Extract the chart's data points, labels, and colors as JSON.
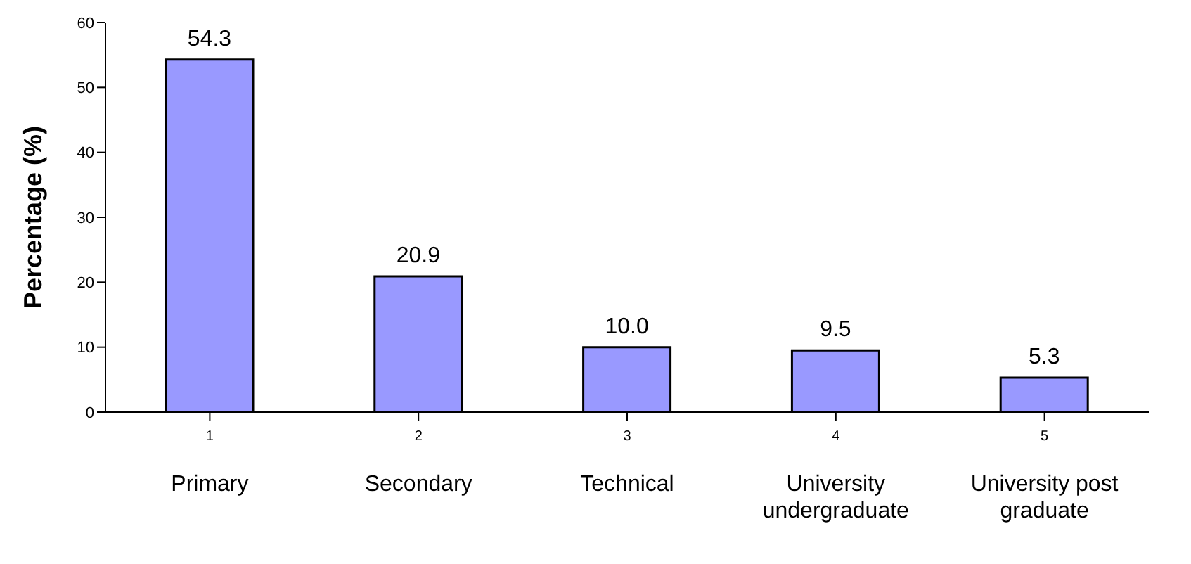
{
  "chart_data": {
    "type": "bar",
    "ylabel": "Percentage (%)",
    "categories": [
      "1",
      "2",
      "3",
      "4",
      "5"
    ],
    "values": [
      54.3,
      20.9,
      10.0,
      9.5,
      5.3
    ],
    "value_labels": [
      "54.3",
      "20.9",
      "10.0",
      "9.5",
      "5.3"
    ],
    "color": "#9999ff",
    "ylim": [
      0,
      60
    ],
    "yticks": [
      0,
      10,
      20,
      30,
      40,
      50,
      60
    ],
    "grid": false,
    "legend": false,
    "annotations": [
      "Primary",
      "Secondary",
      "Technical",
      "University undergraduate",
      "University post graduate"
    ]
  }
}
